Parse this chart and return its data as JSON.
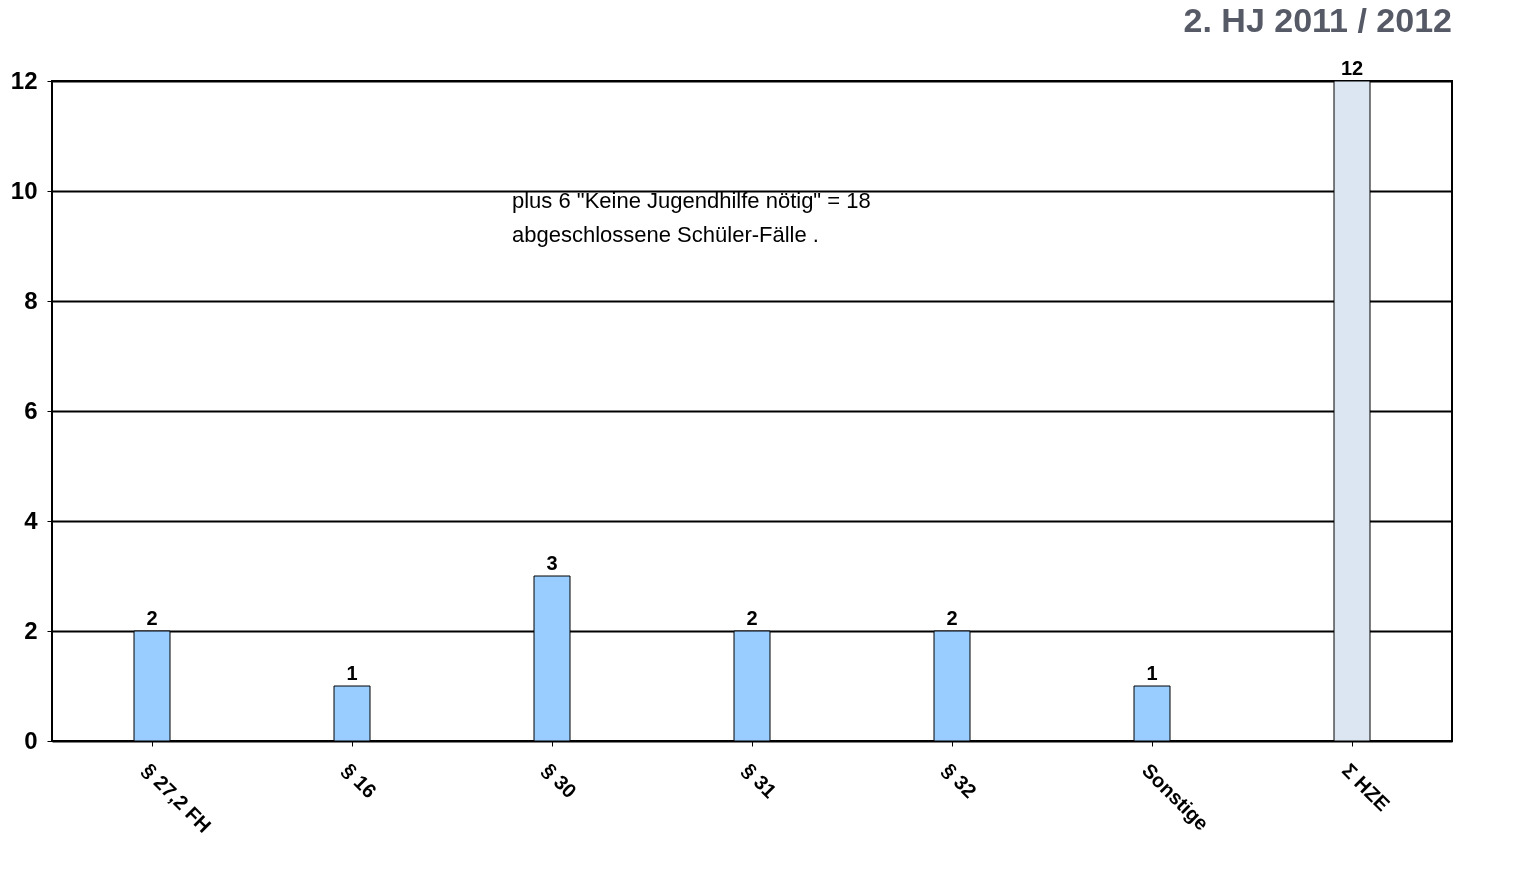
{
  "chart_data": {
    "type": "bar",
    "title": "2. HJ 2011 / 2012",
    "categories": [
      "§ 27,2 FH",
      "§ 16",
      "§ 30",
      "§ 31",
      "§ 32",
      "Sonstige",
      "Σ HZE"
    ],
    "values": [
      2,
      1,
      3,
      2,
      2,
      1,
      12
    ],
    "colors": [
      "#99ccff",
      "#99ccff",
      "#99ccff",
      "#99ccff",
      "#99ccff",
      "#99ccff",
      "#dce6f2"
    ],
    "ylim": [
      0,
      12
    ],
    "yticks": [
      0,
      2,
      4,
      6,
      8,
      10,
      12
    ],
    "grid": "y",
    "data_labels": true,
    "annotations": [
      "plus 6 \"Keine Jugendhilfe nötig\" = 18\nabgeschlossene Schüler-Fälle ."
    ]
  }
}
